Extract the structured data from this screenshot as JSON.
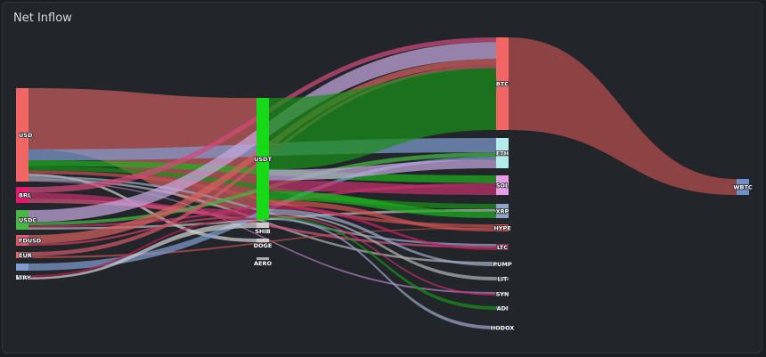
{
  "title": "Net Inflow",
  "chart_data": {
    "type": "sankey",
    "title": "Net Inflow",
    "nodes": [
      {
        "id": "USD",
        "color": "#f26565"
      },
      {
        "id": "BRL",
        "color": "#e8176b"
      },
      {
        "id": "USDC",
        "color": "#46b843"
      },
      {
        "id": "FDUSD",
        "color": "#dc5b6b"
      },
      {
        "id": "EUR",
        "color": "#ee6565"
      },
      {
        "id": "",
        "color": "#7f9bd0"
      },
      {
        "id": "TRY",
        "color": "#d8d8d8"
      },
      {
        "id": "USDT",
        "color": "#18d918"
      },
      {
        "id": "SHIB",
        "color": "#cccccc"
      },
      {
        "id": "DOGE",
        "color": "#cccccc"
      },
      {
        "id": "AERO",
        "color": "#aaaaaa"
      },
      {
        "id": "BTC",
        "color": "#f26565"
      },
      {
        "id": "ETH",
        "color": "#b4ecec"
      },
      {
        "id": "SOL",
        "color": "#e89ce8"
      },
      {
        "id": "XRP",
        "color": "#8ea3c9"
      },
      {
        "id": "HYPE",
        "color": "#e04f4f"
      },
      {
        "id": "LTC",
        "color": "#c02060"
      },
      {
        "id": "PUMP",
        "color": "#777777"
      },
      {
        "id": "LIT",
        "color": "#888888"
      },
      {
        "id": "SYN",
        "color": "#888888"
      },
      {
        "id": "ADI",
        "color": "#888888"
      },
      {
        "id": "HODOX",
        "color": "#888888"
      },
      {
        "id": "WBTC",
        "color": "#6f8fc8"
      }
    ],
    "links": [
      {
        "source": "USD",
        "target": "USDT",
        "value": 55,
        "color": "#c85c5c"
      },
      {
        "source": "USD",
        "target": "ETH",
        "value": 10,
        "color": "#7f9bd0"
      },
      {
        "source": "USD",
        "target": "SOL",
        "value": 5,
        "color": "#1fb01f"
      },
      {
        "source": "USD",
        "target": "XRP",
        "value": 4,
        "color": "#1a8f1a"
      },
      {
        "source": "USD",
        "target": "HYPE",
        "value": 3,
        "color": "#c05050"
      },
      {
        "source": "USD",
        "target": "LTC",
        "value": 2,
        "color": "#9aa8c8"
      },
      {
        "source": "USD",
        "target": "DOGE",
        "value": 2,
        "color": "#d0d0d0"
      },
      {
        "source": "USD",
        "target": "PUMP",
        "value": 2,
        "color": "#b0b0b0"
      },
      {
        "source": "USD",
        "target": "SYN",
        "value": 1,
        "color": "#b080c0"
      },
      {
        "source": "BRL",
        "target": "USDT",
        "value": 3,
        "color": "#c0306a"
      },
      {
        "source": "BRL",
        "target": "BTC",
        "value": 3,
        "color": "#d04a7a"
      },
      {
        "source": "BRL",
        "target": "LTC",
        "value": 2,
        "color": "#d0507a"
      },
      {
        "source": "USDC",
        "target": "BTC",
        "value": 11,
        "color": "#c4a6dc"
      },
      {
        "source": "USDC",
        "target": "ETH",
        "value": 3,
        "color": "#46b843"
      },
      {
        "source": "USDC",
        "target": "SOL",
        "value": 2,
        "color": "#c0306a"
      },
      {
        "source": "USDC",
        "target": "XRP",
        "value": 2,
        "color": "#b8b8b8"
      },
      {
        "source": "FDUSD",
        "target": "BTC",
        "value": 4,
        "color": "#d46060"
      },
      {
        "source": "FDUSD",
        "target": "USDT",
        "value": 1,
        "color": "#cc4060"
      },
      {
        "source": "EUR",
        "target": "BTC",
        "value": 2,
        "color": "#ce5a6a"
      },
      {
        "source": "EUR",
        "target": "HYPE",
        "value": 1,
        "color": "#c05050"
      },
      {
        "source": "",
        "target": "ETH",
        "value": 2,
        "color": "#7f9bd0"
      },
      {
        "source": "TRY",
        "target": "USDT",
        "value": 1,
        "color": "#b02050"
      },
      {
        "source": "TRY",
        "target": "SHIB",
        "value": 1,
        "color": "#d0d0d0"
      },
      {
        "source": "USDT",
        "target": "BTC",
        "value": 40,
        "color": "#1a8f1a"
      },
      {
        "source": "USDT",
        "target": "ETH",
        "value": 6,
        "color": "#c4a6dc"
      },
      {
        "source": "USDT",
        "target": "SOL",
        "value": 6,
        "color": "#c0306a"
      },
      {
        "source": "USDT",
        "target": "XRP",
        "value": 5,
        "color": "#1fb01f"
      },
      {
        "source": "USDT",
        "target": "HYPE",
        "value": 3,
        "color": "#d05050"
      },
      {
        "source": "USDT",
        "target": "LTC",
        "value": 2,
        "color": "#c02060"
      },
      {
        "source": "USDT",
        "target": "PUMP",
        "value": 2,
        "color": "#9aa8c8"
      },
      {
        "source": "USDT",
        "target": "LIT",
        "value": 1,
        "color": "#b0b0b0"
      },
      {
        "source": "USDT",
        "target": "SYN",
        "value": 1,
        "color": "#c0306a"
      },
      {
        "source": "USDT",
        "target": "ADI",
        "value": 1,
        "color": "#1a8f1a"
      },
      {
        "source": "USDT",
        "target": "HODOX",
        "value": 1,
        "color": "#9aa8c8"
      },
      {
        "source": "BTC",
        "target": "WBTC",
        "value": 7,
        "color": "#a04848"
      }
    ]
  }
}
